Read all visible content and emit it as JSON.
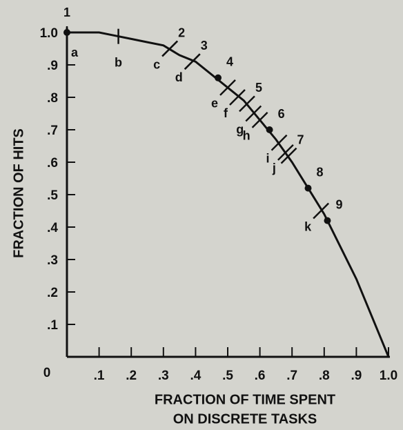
{
  "chart_data": {
    "type": "line",
    "x_label_lines": [
      "FRACTION OF TIME SPENT",
      "ON DISCRETE TASKS"
    ],
    "y_label": "FRACTION OF HITS",
    "xlim": [
      0,
      1
    ],
    "ylim": [
      0,
      1
    ],
    "xticks": [
      0,
      {
        "value": 0.1,
        "label": ".1"
      },
      {
        "value": 0.2,
        "label": ".2"
      },
      {
        "value": 0.3,
        "label": ".3"
      },
      {
        "value": 0.4,
        "label": ".4"
      },
      {
        "value": 0.5,
        "label": ".5"
      },
      {
        "value": 0.6,
        "label": ".6"
      },
      {
        "value": 0.7,
        "label": ".7"
      },
      {
        "value": 0.8,
        "label": ".8"
      },
      {
        "value": 0.9,
        "label": ".9"
      },
      {
        "value": 1,
        "label": "1.0"
      }
    ],
    "yticks": [
      {
        "value": 0.1,
        "label": ".1"
      },
      {
        "value": 0.2,
        "label": ".2"
      },
      {
        "value": 0.3,
        "label": ".3"
      },
      {
        "value": 0.4,
        "label": ".4"
      },
      {
        "value": 0.5,
        "label": ".5"
      },
      {
        "value": 0.6,
        "label": ".6"
      },
      {
        "value": 0.7,
        "label": ".7"
      },
      {
        "value": 0.8,
        "label": ".8"
      },
      {
        "value": 0.9,
        "label": ".9"
      },
      {
        "value": 1,
        "label": "1.0"
      }
    ],
    "series": [
      {
        "color": "#111111",
        "x": [
          0,
          0.05,
          0.1,
          0.15,
          0.2,
          0.25,
          0.3,
          0.35,
          0.4,
          0.45,
          0.5,
          0.55,
          0.6,
          0.65,
          0.7,
          0.75,
          0.8,
          0.85,
          0.9,
          0.95,
          1
        ],
        "values": [
          1,
          1,
          1,
          0.99,
          0.98,
          0.97,
          0.96,
          0.93,
          0.91,
          0.87,
          0.83,
          0.79,
          0.73,
          0.67,
          0.6,
          0.52,
          0.44,
          0.34,
          0.24,
          0.12,
          0
        ]
      }
    ],
    "numbered_points": [
      {
        "label": "1",
        "x": 0,
        "y": 1,
        "marker": "dot"
      },
      {
        "label": "2",
        "x": 0.32,
        "y": 0.95,
        "marker": "tick"
      },
      {
        "label": "3",
        "x": 0.39,
        "y": 0.91,
        "marker": "tick"
      },
      {
        "label": "4",
        "x": 0.47,
        "y": 0.86,
        "marker": "dot"
      },
      {
        "label": "5",
        "x": 0.56,
        "y": 0.78,
        "marker": "tick"
      },
      {
        "label": "6",
        "x": 0.63,
        "y": 0.7,
        "marker": "dot"
      },
      {
        "label": "7",
        "x": 0.69,
        "y": 0.62,
        "marker": "tick"
      },
      {
        "label": "8",
        "x": 0.75,
        "y": 0.52,
        "marker": "dot"
      },
      {
        "label": "9",
        "x": 0.81,
        "y": 0.42,
        "marker": "dot"
      }
    ],
    "lettered_points": [
      {
        "label": "a",
        "x": 0,
        "y": 1
      },
      {
        "label": "b",
        "x": 0.16,
        "y": 0.99
      },
      {
        "label": "c",
        "x": 0.32,
        "y": 0.95
      },
      {
        "label": "d",
        "x": 0.39,
        "y": 0.91
      },
      {
        "label": "e",
        "x": 0.5,
        "y": 0.83
      },
      {
        "label": "f",
        "x": 0.53,
        "y": 0.8
      },
      {
        "label": "g",
        "x": 0.58,
        "y": 0.75
      },
      {
        "label": "h",
        "x": 0.6,
        "y": 0.73
      },
      {
        "label": "i",
        "x": 0.66,
        "y": 0.66
      },
      {
        "label": "j",
        "x": 0.68,
        "y": 0.63
      },
      {
        "label": "k",
        "x": 0.79,
        "y": 0.45
      }
    ]
  }
}
